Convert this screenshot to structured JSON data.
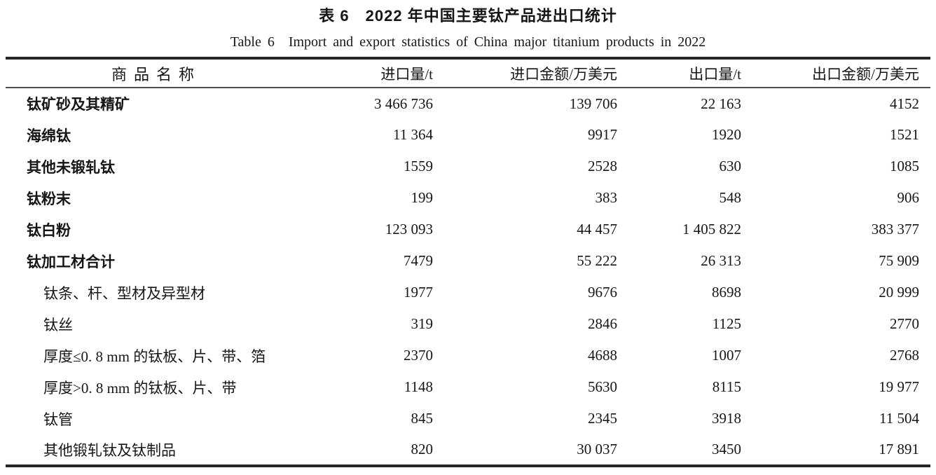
{
  "page": {
    "title_zh": "表 6　2022 年中国主要钛产品进出口统计",
    "title_en": "Table 6　Import and export statistics of China major titanium products in 2022"
  },
  "table": {
    "columns": [
      "商品名称",
      "进口量/t",
      "进口金额/万美元",
      "出口量/t",
      "出口金额/万美元"
    ],
    "rows": [
      {
        "name": "钛矿砂及其精矿",
        "sub": false,
        "import_qty": "3 466 736",
        "import_value": "139 706",
        "export_qty": "22 163",
        "export_value": "4152"
      },
      {
        "name": "海绵钛",
        "sub": false,
        "import_qty": "11 364",
        "import_value": "9917",
        "export_qty": "1920",
        "export_value": "1521"
      },
      {
        "name": "其他未锻轧钛",
        "sub": false,
        "import_qty": "1559",
        "import_value": "2528",
        "export_qty": "630",
        "export_value": "1085"
      },
      {
        "name": "钛粉末",
        "sub": false,
        "import_qty": "199",
        "import_value": "383",
        "export_qty": "548",
        "export_value": "906"
      },
      {
        "name": "钛白粉",
        "sub": false,
        "import_qty": "123 093",
        "import_value": "44 457",
        "export_qty": "1 405 822",
        "export_value": "383 377"
      },
      {
        "name": "钛加工材合计",
        "sub": false,
        "import_qty": "7479",
        "import_value": "55 222",
        "export_qty": "26 313",
        "export_value": "75 909"
      },
      {
        "name": "钛条、杆、型材及异型材",
        "sub": true,
        "import_qty": "1977",
        "import_value": "9676",
        "export_qty": "8698",
        "export_value": "20 999"
      },
      {
        "name": "钛丝",
        "sub": true,
        "import_qty": "319",
        "import_value": "2846",
        "export_qty": "1125",
        "export_value": "2770"
      },
      {
        "name": "厚度≤0. 8 mm 的钛板、片、带、箔",
        "sub": true,
        "import_qty": "2370",
        "import_value": "4688",
        "export_qty": "1007",
        "export_value": "2768"
      },
      {
        "name": "厚度>0. 8 mm 的钛板、片、带",
        "sub": true,
        "import_qty": "1148",
        "import_value": "5630",
        "export_qty": "8115",
        "export_value": "19 977"
      },
      {
        "name": "钛管",
        "sub": true,
        "import_qty": "845",
        "import_value": "2345",
        "export_qty": "3918",
        "export_value": "11 504"
      },
      {
        "name": "其他锻轧钛及钛制品",
        "sub": true,
        "import_qty": "820",
        "import_value": "30 037",
        "export_qty": "3450",
        "export_value": "17 891"
      }
    ]
  }
}
